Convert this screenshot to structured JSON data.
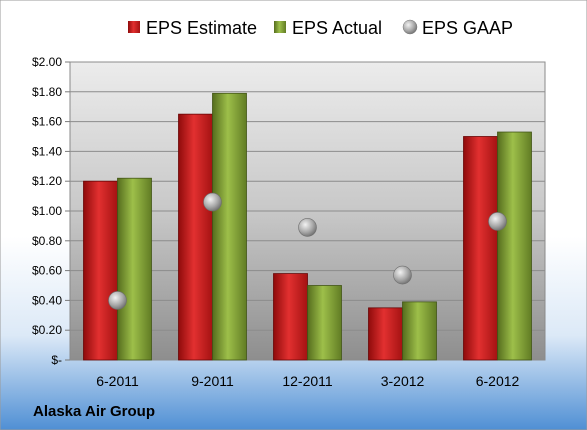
{
  "chart_data": {
    "type": "bar",
    "categories": [
      "6-2011",
      "9-2011",
      "12-2011",
      "3-2012",
      "6-2012"
    ],
    "series": [
      {
        "name": "EPS Estimate",
        "kind": "bar",
        "color": "#cc1a1a",
        "values": [
          1.2,
          1.65,
          0.58,
          0.35,
          1.5
        ]
      },
      {
        "name": "EPS Actual",
        "kind": "bar",
        "color": "#7a9b2e",
        "values": [
          1.22,
          1.79,
          0.5,
          0.39,
          1.53
        ]
      },
      {
        "name": "EPS GAAP",
        "kind": "marker",
        "color": "#b0b0b0",
        "values": [
          0.4,
          1.06,
          0.89,
          0.57,
          0.93
        ]
      }
    ],
    "ylim": [
      0,
      2.0
    ],
    "yticks": [
      0,
      0.2,
      0.4,
      0.6,
      0.8,
      1.0,
      1.2,
      1.4,
      1.6,
      1.8,
      2.0
    ],
    "ytick_labels": [
      "$-",
      "$0.20",
      "$0.40",
      "$0.60",
      "$0.80",
      "$1.00",
      "$1.20",
      "$1.40",
      "$1.60",
      "$1.80",
      "$2.00"
    ],
    "grid": true,
    "legend_position": "top",
    "company": "Alaska Air Group",
    "title": "",
    "xlabel": "",
    "ylabel": ""
  }
}
